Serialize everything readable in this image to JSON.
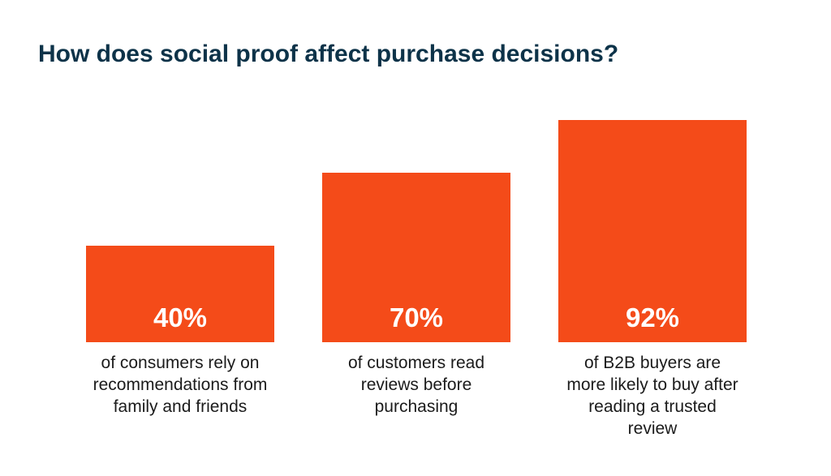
{
  "chart_data": {
    "type": "bar",
    "title": "How does social proof affect purchase decisions?",
    "categories": [
      "of consumers rely on\nrecommendations from\nfamily and friends",
      "of customers read\nreviews before\npurchasing",
      "of B2B buyers are\nmore likely to buy after\nreading a trusted\nreview"
    ],
    "values": [
      40,
      70,
      92
    ],
    "value_labels": [
      "40%",
      "70%",
      "92%"
    ],
    "color": "#f44b19"
  }
}
